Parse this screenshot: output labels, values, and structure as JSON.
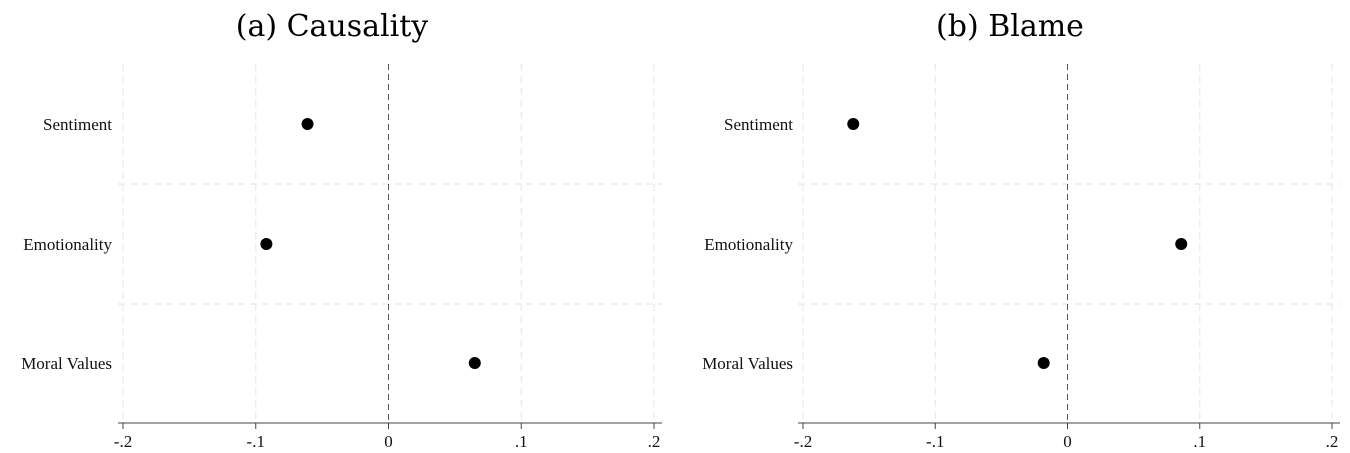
{
  "chart_data": [
    {
      "type": "scatter",
      "title": "(a) Causality",
      "categories": [
        "Sentiment",
        "Emotionality",
        "Moral Values"
      ],
      "values": [
        -0.061,
        -0.092,
        0.065
      ],
      "xlim": [
        -0.2,
        0.2
      ],
      "xticks": [
        -0.2,
        -0.1,
        0,
        0.1,
        0.2
      ],
      "xtick_labels": [
        "-.2",
        "-.1",
        "0",
        ".1",
        ".2"
      ],
      "reference_line": 0,
      "grid": true
    },
    {
      "type": "scatter",
      "title": "(b) Blame",
      "categories": [
        "Sentiment",
        "Emotionality",
        "Moral Values"
      ],
      "values": [
        -0.162,
        0.086,
        -0.018
      ],
      "xlim": [
        -0.2,
        0.2
      ],
      "xticks": [
        -0.2,
        -0.1,
        0,
        0.1,
        0.2
      ],
      "xtick_labels": [
        "-.2",
        "-.1",
        "0",
        ".1",
        ".2"
      ],
      "reference_line": 0,
      "grid": true
    }
  ]
}
